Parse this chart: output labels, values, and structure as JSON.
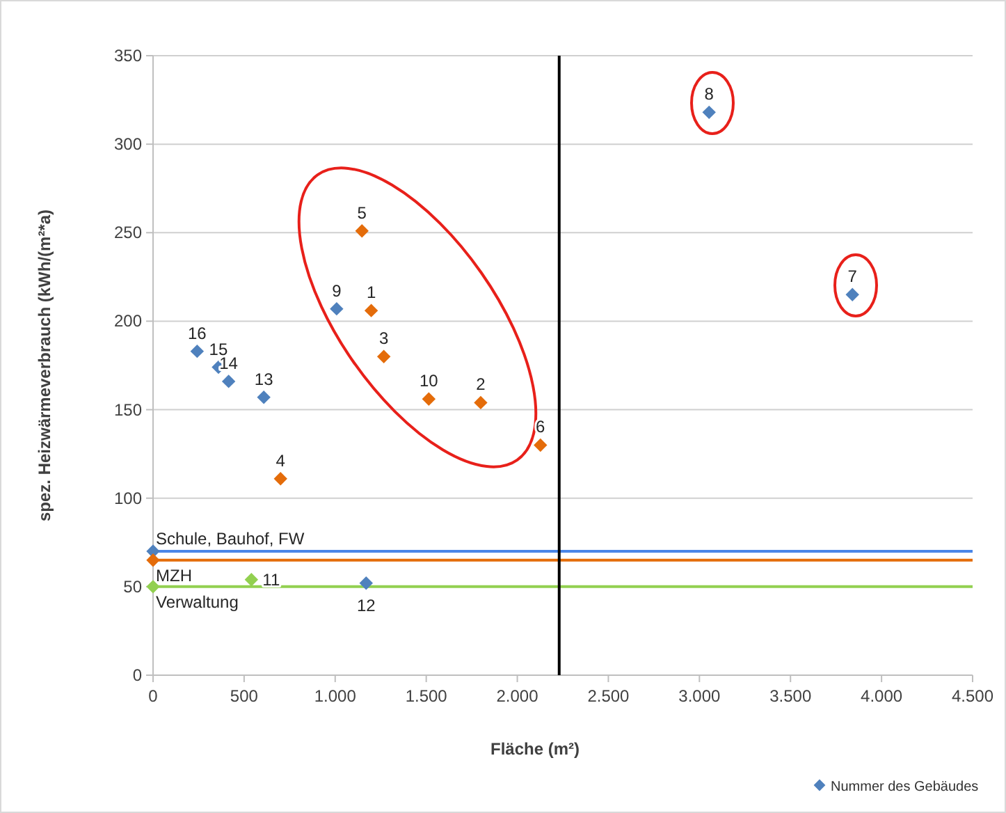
{
  "chart_data": {
    "type": "scatter",
    "xlabel": "Fläche (m²)",
    "ylabel": "spez. Heizwärmeverbrauch (kWh/(m²*a)",
    "series": [
      {
        "name": "Nummer des Gebäudes",
        "color": "#4f81bd",
        "x": [
          3840,
          3053,
          1008,
          1170,
          608,
          415,
          359,
          242,
          0
        ],
        "values": [
          215,
          318,
          207,
          52,
          157,
          166,
          174,
          183,
          70
        ]
      },
      {
        "color": "#e46c0a",
        "x": [
          1198,
          1799,
          1267,
          700,
          1147,
          2127,
          1514,
          0
        ],
        "values": [
          206,
          154,
          180,
          111,
          251,
          130,
          156,
          65
        ]
      },
      {
        "color": "#92d050",
        "x": [
          540,
          0
        ],
        "values": [
          54,
          50
        ]
      }
    ],
    "xlim": [
      0,
      4500
    ],
    "xticks": [
      0,
      500,
      {
        "value": 1000,
        "label": "1.000"
      },
      {
        "value": 1500,
        "label": "1.500"
      },
      {
        "value": 2000,
        "label": "2.000"
      },
      {
        "value": 2500,
        "label": "2.500"
      },
      {
        "value": 3000,
        "label": "3.000"
      },
      {
        "value": 3500,
        "label": "3.500"
      },
      {
        "value": 4000,
        "label": "4.000"
      },
      {
        "value": 4500,
        "label": "4.500"
      }
    ],
    "ylim": [
      0,
      350
    ],
    "yticks": [
      0,
      50,
      100,
      150,
      200,
      250,
      300,
      350
    ],
    "grid": "y",
    "marker": "diamond",
    "legend": "bottom right",
    "ref_lines": [
      {
        "axis": "y",
        "value": 70,
        "label": "Schule, Bauhof, FW",
        "color": "#4a86e8"
      },
      {
        "axis": "y",
        "value": 65,
        "label": "MZH",
        "color": "#e46c0a"
      },
      {
        "axis": "y",
        "value": 50,
        "label": "Verwaltung",
        "color": "#92d050"
      },
      {
        "axis": "x",
        "value": 2230,
        "label": null,
        "color": "#000000"
      }
    ],
    "annotations": [
      {
        "text": "1",
        "x": 1198,
        "y": 206
      },
      {
        "text": "2",
        "x": 1799,
        "y": 154
      },
      {
        "text": "3",
        "x": 1267,
        "y": 180
      },
      {
        "text": "4",
        "x": 700,
        "y": 111
      },
      {
        "text": "5",
        "x": 1147,
        "y": 251
      },
      {
        "text": "6",
        "x": 2127,
        "y": 130
      },
      {
        "text": "7",
        "x": 3840,
        "y": 215
      },
      {
        "text": "8",
        "x": 3053,
        "y": 318
      },
      {
        "text": "9",
        "x": 1008,
        "y": 207
      },
      {
        "text": "10",
        "x": 1514,
        "y": 156
      },
      {
        "text": "11",
        "x": 540,
        "y": 54
      },
      {
        "text": "12",
        "x": 1170,
        "y": 52
      },
      {
        "text": "13",
        "x": 608,
        "y": 157
      },
      {
        "text": "14",
        "x": 415,
        "y": 166
      },
      {
        "text": "15",
        "x": 359,
        "y": 174
      },
      {
        "text": "16",
        "x": 242,
        "y": 183
      }
    ]
  }
}
